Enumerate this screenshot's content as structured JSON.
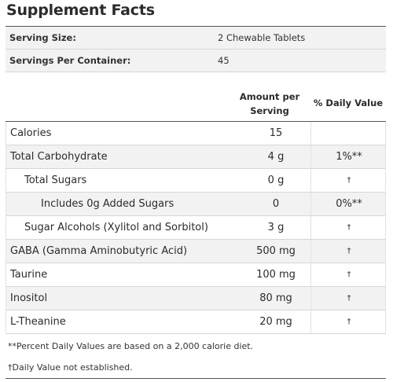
{
  "title": "Supplement Facts",
  "serving": {
    "size_label": "Serving Size:",
    "size_value": "2 Chewable Tablets",
    "per_container_label": "Servings Per Container:",
    "per_container_value": "45"
  },
  "columns": {
    "amount_line1": "Amount per",
    "amount_line2": "Serving",
    "daily_value": "% Daily Value"
  },
  "rows": [
    {
      "name": "Calories",
      "amount": "15",
      "dv": ""
    },
    {
      "name": "Total Carbohydrate",
      "amount": "4 g",
      "dv": "1%**"
    },
    {
      "name": "Total Sugars",
      "amount": "0 g",
      "dv": "†"
    },
    {
      "name": "Includes 0g Added Sugars",
      "amount": "0",
      "dv": "0%**"
    },
    {
      "name": "Sugar Alcohols (Xylitol and Sorbitol)",
      "amount": "3 g",
      "dv": "†"
    },
    {
      "name": "GABA (Gamma Aminobutyric Acid)",
      "amount": "500 mg",
      "dv": "†"
    },
    {
      "name": "Taurine",
      "amount": "100 mg",
      "dv": "†"
    },
    {
      "name": "Inositol",
      "amount": "80 mg",
      "dv": "†"
    },
    {
      "name": "L-Theanine",
      "amount": "20 mg",
      "dv": "†"
    }
  ],
  "footnotes": [
    "**Percent Daily Values are based on a 2,000 calorie diet.",
    "†Daily Value not established."
  ]
}
